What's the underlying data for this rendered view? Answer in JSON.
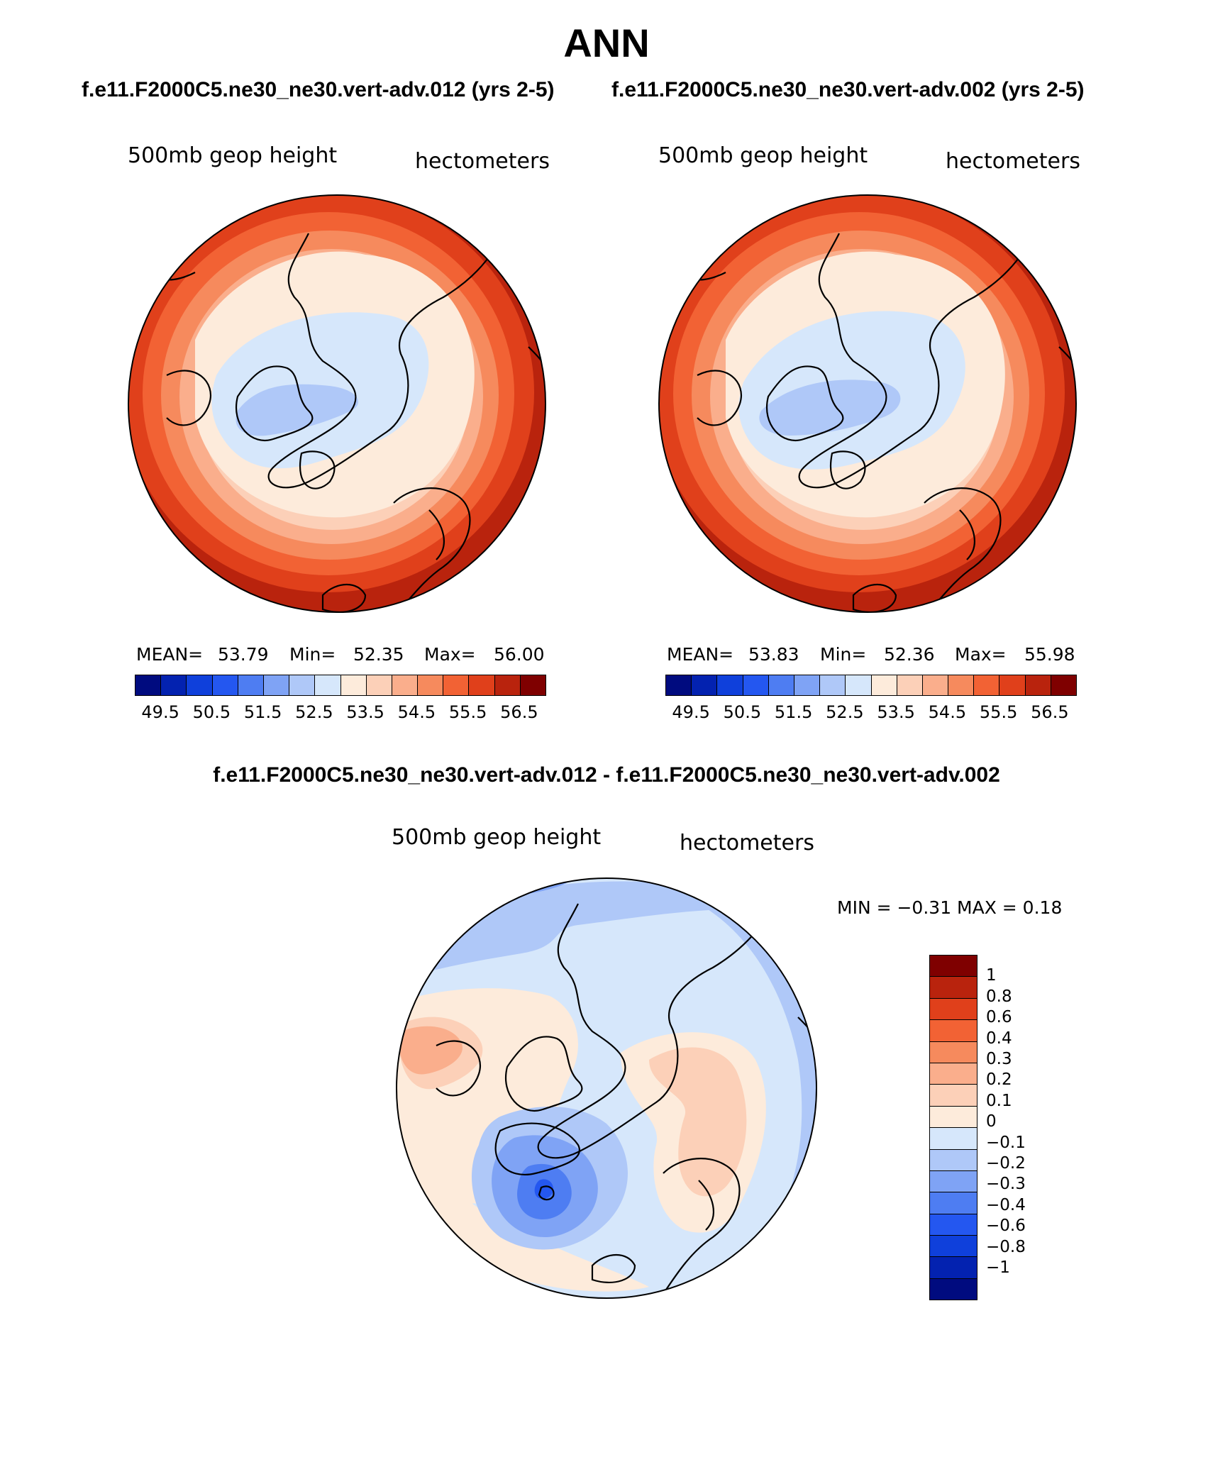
{
  "header": {
    "title": "ANN",
    "case_left": "f.e11.F2000C5.ne30_ne30.vert-adv.012 (yrs 2-5)",
    "case_right": "f.e11.F2000C5.ne30_ne30.vert-adv.002 (yrs 2-5)",
    "diff_title": "f.e11.F2000C5.ne30_ne30.vert-adv.012 - f.e11.F2000C5.ne30_ne30.vert-adv.002"
  },
  "panels": [
    {
      "variable": "500mb geop height",
      "units": "hectometers",
      "mean_label": "MEAN=",
      "mean": "53.79",
      "min_label": "Min=",
      "min": "52.35",
      "max_label": "Max=",
      "max": "56.00"
    },
    {
      "variable": "500mb geop height",
      "units": "hectometers",
      "mean_label": "MEAN=",
      "mean": "53.83",
      "min_label": "Min=",
      "min": "52.36",
      "max_label": "Max=",
      "max": "55.98"
    }
  ],
  "diff_panel": {
    "variable": "500mb geop height",
    "units": "hectometers",
    "stats": "MIN =   −0.31  MAX =     0.18"
  },
  "abs_colorbar": {
    "colors": [
      "#000b7f",
      "#0322b0",
      "#0f40db",
      "#2457f0",
      "#4e7df2",
      "#7fa3f5",
      "#afc8f8",
      "#d6e7fb",
      "#fdebdb",
      "#fcd0b8",
      "#faae8c",
      "#f68a5d",
      "#f26234",
      "#e0401b",
      "#b9230d",
      "#7f0000"
    ],
    "tick_labels": [
      "49.5",
      "50.5",
      "51.5",
      "52.5",
      "53.5",
      "54.5",
      "55.5",
      "56.5"
    ]
  },
  "diff_colorbar": {
    "colors": [
      "#7f0000",
      "#b9230d",
      "#e0401b",
      "#f26234",
      "#f68a5d",
      "#faae8c",
      "#fcd0b8",
      "#fdebdb",
      "#d6e7fb",
      "#afc8f8",
      "#7fa3f5",
      "#4e7df2",
      "#2457f0",
      "#0f40db",
      "#0322b0",
      "#000b7f"
    ],
    "labels": [
      "1",
      "0.8",
      "0.6",
      "0.4",
      "0.3",
      "0.2",
      "0.1",
      "0",
      "−0.1",
      "−0.2",
      "−0.3",
      "−0.4",
      "−0.6",
      "−0.8",
      "−1"
    ]
  }
}
